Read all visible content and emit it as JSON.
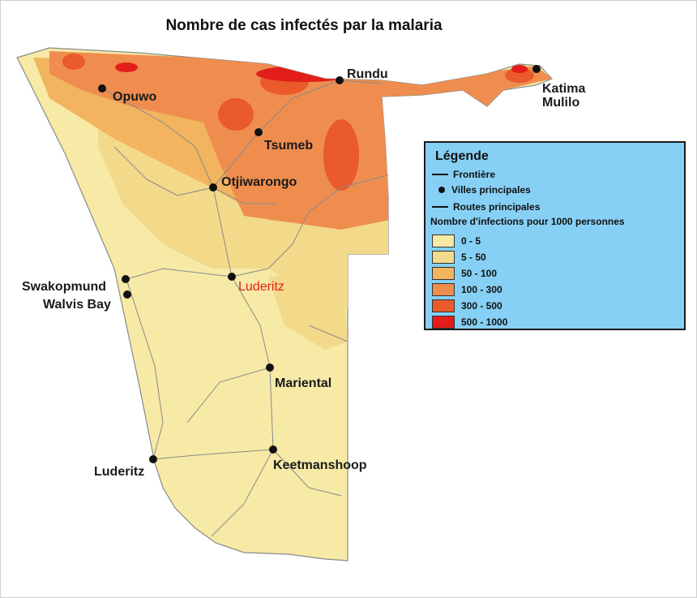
{
  "title": "Nombre de cas infectés par la malaria",
  "cities": [
    {
      "name": "Rundu",
      "cls": ""
    },
    {
      "name": "Opuwo",
      "cls": ""
    },
    {
      "name": "Katima",
      "cls": ""
    },
    {
      "name": "Mulilo",
      "cls": ""
    },
    {
      "name": "Tsumeb",
      "cls": ""
    },
    {
      "name": "Otjiwarongo",
      "cls": ""
    },
    {
      "name": "Luderitz",
      "cls": "highlight"
    },
    {
      "name": "Swakopmund",
      "cls": ""
    },
    {
      "name": "Walvis Bay",
      "cls": ""
    },
    {
      "name": "Mariental",
      "cls": ""
    },
    {
      "name": "Keetmanshoop",
      "cls": ""
    },
    {
      "name": "Luderitz",
      "cls": ""
    }
  ],
  "legend": {
    "title": "Légende",
    "border_label": "Frontière",
    "cities_label": "Villes principales",
    "roads_label": "Routes principales",
    "scale_heading": "Nombre d'infections pour 1000 personnes",
    "classes": [
      {
        "label": "0 - 5",
        "color": "#f6eaa6"
      },
      {
        "label": "5 - 50",
        "color": "#f3d98a"
      },
      {
        "label": "50 - 100",
        "color": "#f2b45e"
      },
      {
        "label": "100 - 300",
        "color": "#ef8d4f"
      },
      {
        "label": "300 - 500",
        "color": "#ea5a2a"
      },
      {
        "label": "500 - 1000",
        "color": "#e21d1a"
      }
    ]
  }
}
